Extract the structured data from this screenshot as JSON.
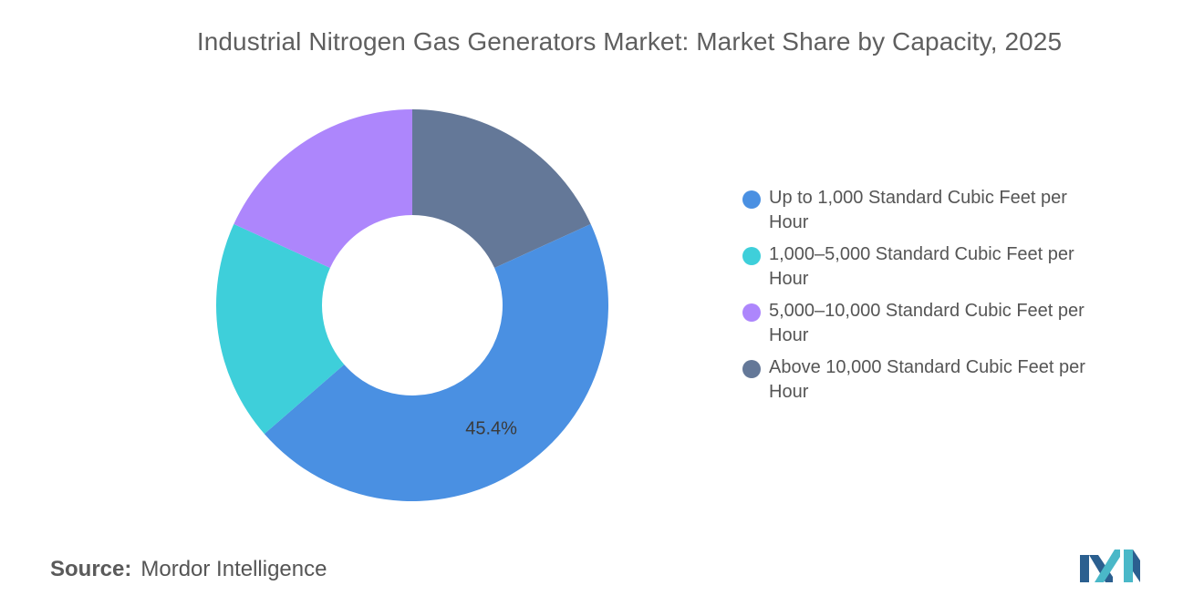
{
  "title": "Industrial Nitrogen Gas Generators Market: Market Share by Capacity, 2025",
  "source": {
    "label": "Source:",
    "value": "Mordor Intelligence"
  },
  "logo": {
    "name": "mordor-intelligence-logo",
    "colors": [
      "#2b5f8f",
      "#4ab8c8"
    ]
  },
  "chart_data": {
    "type": "pie",
    "donut": true,
    "legend_position": "right",
    "categories": [
      "Up to 1,000 Standard Cubic Feet per Hour",
      "1,000–5,000 Standard Cubic Feet per Hour",
      "5,000–10,000 Standard Cubic Feet per Hour",
      "Above 10,000 Standard Cubic Feet per Hour"
    ],
    "values": [
      45.4,
      18.2,
      18.2,
      18.2
    ],
    "colors": [
      "#4a90e2",
      "#3ecfda",
      "#ad86fc",
      "#647898"
    ],
    "data_labels": [
      "45.4%",
      "",
      "",
      ""
    ],
    "start_category_index": 3
  }
}
